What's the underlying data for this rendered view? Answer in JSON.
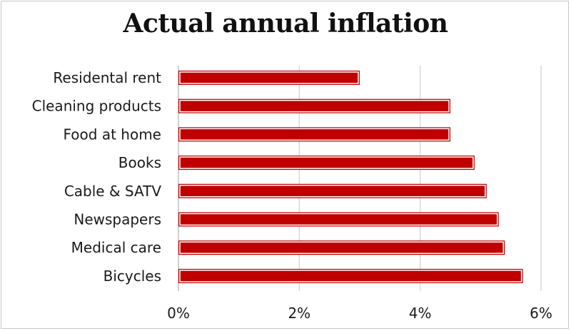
{
  "chart_data": {
    "type": "bar",
    "orientation": "horizontal",
    "title": "Actual annual inflation",
    "categories": [
      "Residental rent",
      "Cleaning products",
      "Food at home",
      "Books",
      "Cable & SATV",
      "Newspapers",
      "Medical care",
      "Bicycles"
    ],
    "values": [
      3.0,
      4.5,
      4.5,
      4.9,
      5.1,
      5.3,
      5.4,
      5.7
    ],
    "value_unit": "%",
    "xlim": [
      0,
      6
    ],
    "xticks": [
      "0%",
      "2%",
      "4%",
      "6%"
    ],
    "xtick_values": [
      0,
      2,
      4,
      6
    ],
    "xlabel": "",
    "ylabel": "",
    "grid": "vertical",
    "legend": "none",
    "bar_color": "#c00000",
    "bar_outline_color": "#ffffff",
    "bar_border_color": "#c00000",
    "grid_color": "#d9d9d9"
  }
}
